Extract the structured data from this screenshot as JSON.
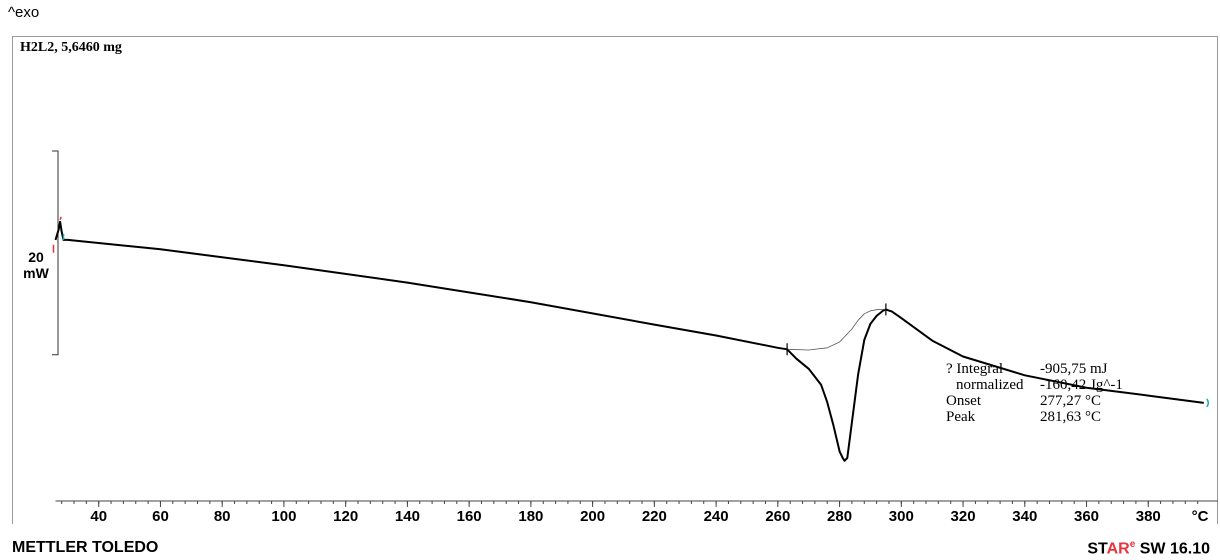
{
  "header": {
    "exo_label": "^exo",
    "sample_label": "H2L2, 5,6460 mg"
  },
  "scale_bar": {
    "value": "20",
    "unit": "mW"
  },
  "results": [
    {
      "label": "? Integral",
      "value": "-905,75 mJ",
      "indent": false
    },
    {
      "label": "normalized",
      "value": "-160,42 Jg^-1",
      "indent": true
    },
    {
      "label": "Onset",
      "value": "277,27 °C",
      "indent": false
    },
    {
      "label": "Peak",
      "value": "281,63 °C",
      "indent": false
    }
  ],
  "footer": {
    "brand": "METTLER TOLEDO",
    "software_prefix": "ST",
    "software_accent": "AR",
    "software_sup": "e",
    "software_suffix": " SW 16.10"
  },
  "colors": {
    "curve": "#000000",
    "baseline": "#555555",
    "frame": "#9a9a9a",
    "marker_red": "#e8333c",
    "marker_cyan": "#22a7b5"
  },
  "chart_data": {
    "type": "line",
    "title": "",
    "xlabel": "°C",
    "ylabel": "",
    "x_ticks": [
      40,
      60,
      80,
      100,
      120,
      140,
      160,
      180,
      200,
      220,
      240,
      260,
      280,
      300,
      320,
      340,
      360,
      380
    ],
    "x_minor_step": 4,
    "xlim": [
      26,
      400
    ],
    "ylim": [
      -15.4,
      10.0
    ],
    "y_unit": "mW",
    "scale_bar_mW": 20,
    "series": [
      {
        "name": "",
        "x": [
          26,
          27,
          27.5,
          28,
          28.6,
          30,
          60,
          100,
          140,
          180,
          220,
          240,
          260,
          263,
          266,
          270,
          274,
          276,
          278,
          280,
          281,
          281.63,
          282.5,
          284,
          286,
          288,
          290,
          292,
          294,
          295,
          297,
          300,
          310,
          320,
          340,
          360,
          380,
          398
        ],
        "y": [
          0,
          0.7,
          1.25,
          0.55,
          0,
          0,
          -0.65,
          -1.75,
          -2.95,
          -4.3,
          -5.85,
          -6.6,
          -7.45,
          -7.55,
          -8.2,
          -8.9,
          -10.0,
          -11.2,
          -12.8,
          -14.6,
          -15.05,
          -15.25,
          -15.05,
          -12.6,
          -9.3,
          -6.9,
          -5.8,
          -5.25,
          -4.9,
          -4.8,
          -4.95,
          -5.4,
          -6.95,
          -8.05,
          -9.35,
          -10.2,
          -10.75,
          -11.25
        ]
      },
      {
        "name": "",
        "x": [
          263,
          270,
          276,
          280,
          284,
          286,
          288,
          290,
          292,
          294,
          295
        ],
        "y": [
          -7.55,
          -7.6,
          -7.45,
          -7.05,
          -6.15,
          -5.55,
          -5.1,
          -4.9,
          -4.82,
          -4.8,
          -4.8
        ]
      }
    ],
    "grid": false,
    "legend": "none"
  }
}
